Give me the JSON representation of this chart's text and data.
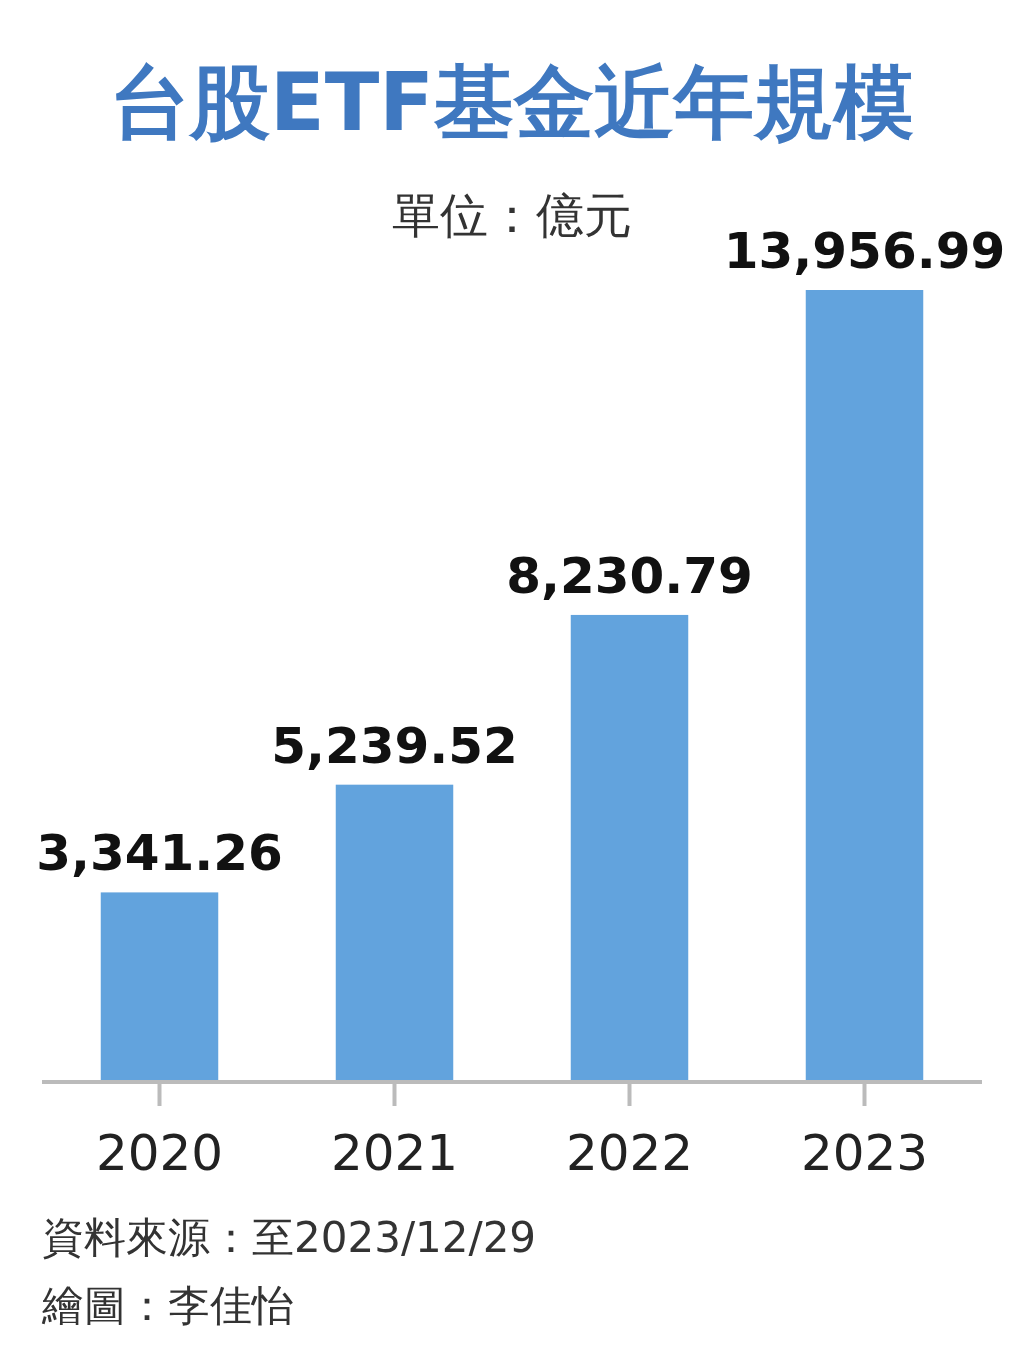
{
  "chart_data": {
    "type": "bar",
    "title": "台股ETF基金近年規模",
    "subtitle": "單位：億元",
    "categories": [
      "2020",
      "2021",
      "2022",
      "2023"
    ],
    "values": [
      3341.26,
      5239.52,
      8230.79,
      13956.99
    ],
    "color": "#62a3dd",
    "data_labels": true,
    "value_labels": [
      "3,341.26",
      "5,239.52",
      "8,230.79",
      "13,956.99"
    ],
    "annotations": [
      "資料來源：至2023/12/29",
      "繪圖：李佳怡"
    ]
  }
}
